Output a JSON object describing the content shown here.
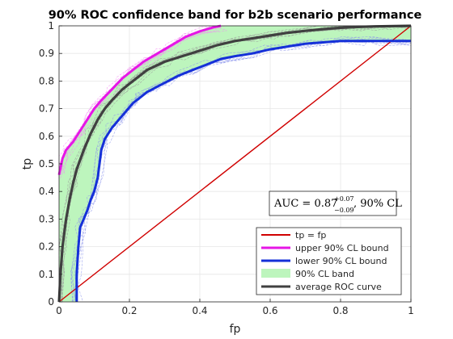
{
  "chart_data": {
    "type": "line",
    "title": "90% ROC confidence band for b2b scenario performance",
    "xlabel": "fp",
    "ylabel": "tp",
    "xlim": [
      0,
      1
    ],
    "ylim": [
      0,
      1
    ],
    "x_ticks": [
      "0",
      "0.2",
      "0.4",
      "0.6",
      "0.8",
      "1"
    ],
    "y_ticks": [
      "0",
      "0.1",
      "0.2",
      "0.3",
      "0.4",
      "0.5",
      "0.6",
      "0.7",
      "0.8",
      "0.9",
      "1"
    ],
    "grid": true,
    "legend_position": "bottom-right",
    "annotation": {
      "prefix": "AUC = 0.87",
      "sup": "+0.07",
      "sub": "−0.09",
      "suffix": ", 90% CL"
    },
    "colors": {
      "diagonal": "#d00000",
      "upper": "#e616e6",
      "lower": "#1530d8",
      "band": "#bdf5bd",
      "average": "#404040",
      "upper_sample": "#f28cf2",
      "lower_sample": "#8c95ec",
      "avg_sample": "#9a9a9a"
    },
    "series": [
      {
        "name": "tp = fp",
        "x": [
          0,
          1
        ],
        "y": [
          0,
          1
        ]
      },
      {
        "name": "upper 90% CL bound",
        "x": [
          0,
          0.01,
          0.02,
          0.04,
          0.06,
          0.08,
          0.1,
          0.12,
          0.15,
          0.18,
          0.21,
          0.24,
          0.28,
          0.32,
          0.36,
          0.4,
          0.44,
          0.46
        ],
        "y": [
          0.46,
          0.52,
          0.55,
          0.58,
          0.62,
          0.66,
          0.7,
          0.73,
          0.77,
          0.81,
          0.84,
          0.87,
          0.9,
          0.93,
          0.96,
          0.98,
          0.995,
          1.0
        ]
      },
      {
        "name": "lower 90% CL bound",
        "x": [
          0.05,
          0.05,
          0.055,
          0.06,
          0.07,
          0.08,
          0.09,
          0.1,
          0.11,
          0.12,
          0.13,
          0.15,
          0.17,
          0.19,
          0.21,
          0.23,
          0.25,
          0.28,
          0.31,
          0.34,
          0.38,
          0.42,
          0.46,
          0.5,
          0.55,
          0.6,
          0.65,
          0.7,
          0.75,
          0.8,
          0.85,
          0.9,
          1.0
        ],
        "y": [
          0,
          0.1,
          0.2,
          0.27,
          0.3,
          0.33,
          0.37,
          0.4,
          0.45,
          0.55,
          0.59,
          0.63,
          0.66,
          0.69,
          0.72,
          0.74,
          0.76,
          0.78,
          0.8,
          0.82,
          0.84,
          0.86,
          0.88,
          0.89,
          0.9,
          0.915,
          0.925,
          0.935,
          0.94,
          0.945,
          0.945,
          0.945,
          0.945
        ]
      },
      {
        "name": "90% CL band"
      },
      {
        "name": "average ROC curve",
        "x": [
          0,
          0.005,
          0.01,
          0.02,
          0.03,
          0.04,
          0.05,
          0.07,
          0.09,
          0.11,
          0.13,
          0.15,
          0.18,
          0.21,
          0.25,
          0.3,
          0.35,
          0.4,
          0.45,
          0.5,
          0.55,
          0.6,
          0.65,
          0.7,
          0.75,
          0.8,
          0.85,
          0.9,
          0.95,
          1.0
        ],
        "y": [
          0,
          0.12,
          0.2,
          0.3,
          0.37,
          0.43,
          0.48,
          0.55,
          0.61,
          0.66,
          0.7,
          0.73,
          0.77,
          0.8,
          0.84,
          0.87,
          0.89,
          0.91,
          0.93,
          0.945,
          0.955,
          0.965,
          0.975,
          0.982,
          0.988,
          0.993,
          0.996,
          0.998,
          0.999,
          1.0
        ]
      }
    ]
  }
}
